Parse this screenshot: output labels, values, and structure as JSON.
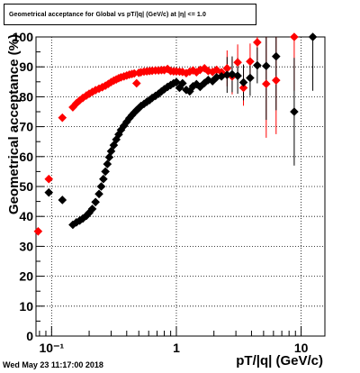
{
  "chart_data": {
    "type": "scatter",
    "title": "Geometrical acceptance for Global vs pT/|q| (GeV/c) at |η| <= 1.0",
    "xlabel": "pT/|q| (GeV/c)",
    "ylabel": "Geometrical acceptance (%)",
    "xscale": "log",
    "xlim": [
      0.075,
      15.5
    ],
    "ylim": [
      0,
      100
    ],
    "x_tick_labels": [
      "10⁻¹",
      "1",
      "10"
    ],
    "y_tick_labels": [
      "0",
      "10",
      "20",
      "30",
      "40",
      "50",
      "60",
      "70",
      "80",
      "90",
      "100"
    ],
    "grid": true,
    "series": [
      {
        "color": "#ff0000",
        "marker": "diamond",
        "points": [
          {
            "x": 0.078,
            "y": 35
          },
          {
            "x": 0.095,
            "y": 52.5
          },
          {
            "x": 0.122,
            "y": 73
          },
          {
            "x": 0.148,
            "y": 76.5
          },
          {
            "x": 0.158,
            "y": 77.8
          },
          {
            "x": 0.168,
            "y": 78.8
          },
          {
            "x": 0.178,
            "y": 79.6
          },
          {
            "x": 0.19,
            "y": 80.4
          },
          {
            "x": 0.2,
            "y": 81
          },
          {
            "x": 0.212,
            "y": 81.6
          },
          {
            "x": 0.225,
            "y": 82.2
          },
          {
            "x": 0.24,
            "y": 82.7
          },
          {
            "x": 0.255,
            "y": 83.2
          },
          {
            "x": 0.27,
            "y": 83.7
          },
          {
            "x": 0.285,
            "y": 84.3
          },
          {
            "x": 0.3,
            "y": 84.9
          },
          {
            "x": 0.315,
            "y": 85.4
          },
          {
            "x": 0.33,
            "y": 85.8
          },
          {
            "x": 0.345,
            "y": 86.2
          },
          {
            "x": 0.36,
            "y": 86.5
          },
          {
            "x": 0.38,
            "y": 86.8
          },
          {
            "x": 0.4,
            "y": 87.1
          },
          {
            "x": 0.42,
            "y": 87.4
          },
          {
            "x": 0.44,
            "y": 87.6
          },
          {
            "x": 0.46,
            "y": 87.8
          },
          {
            "x": 0.48,
            "y": 84.5
          },
          {
            "x": 0.5,
            "y": 88
          },
          {
            "x": 0.52,
            "y": 88.2
          },
          {
            "x": 0.55,
            "y": 88.4
          },
          {
            "x": 0.58,
            "y": 88.5
          },
          {
            "x": 0.61,
            "y": 88.6
          },
          {
            "x": 0.64,
            "y": 88.7
          },
          {
            "x": 0.68,
            "y": 88.8
          },
          {
            "x": 0.72,
            "y": 88.8
          },
          {
            "x": 0.76,
            "y": 88.9
          },
          {
            "x": 0.8,
            "y": 88.9
          },
          {
            "x": 0.85,
            "y": 89.3
          },
          {
            "x": 0.9,
            "y": 88.6
          },
          {
            "x": 0.95,
            "y": 88.5
          },
          {
            "x": 1.0,
            "y": 88.5
          },
          {
            "x": 1.06,
            "y": 88.4
          },
          {
            "x": 1.12,
            "y": 88.3
          },
          {
            "x": 1.2,
            "y": 87.9
          },
          {
            "x": 1.28,
            "y": 88.4
          },
          {
            "x": 1.36,
            "y": 88.8
          },
          {
            "x": 1.45,
            "y": 88.2
          },
          {
            "x": 1.55,
            "y": 89
          },
          {
            "x": 1.68,
            "y": 89.5
          },
          {
            "x": 1.8,
            "y": 88.6
          },
          {
            "x": 1.95,
            "y": 88.3
          },
          {
            "x": 2.1,
            "y": 89
          },
          {
            "x": 2.3,
            "y": 88.2
          },
          {
            "x": 2.55,
            "y": 89.5
          },
          {
            "x": 2.8,
            "y": 86.8
          },
          {
            "x": 3.1,
            "y": 91.5
          },
          {
            "x": 3.45,
            "y": 83
          },
          {
            "x": 3.9,
            "y": 91.8
          },
          {
            "x": 4.45,
            "y": 98.2
          },
          {
            "x": 5.25,
            "y": 84.3
          },
          {
            "x": 6.3,
            "y": 85.5
          },
          {
            "x": 8.8,
            "y": 100
          }
        ]
      },
      {
        "color": "#000000",
        "marker": "diamond",
        "points": [
          {
            "x": 0.095,
            "y": 48
          },
          {
            "x": 0.122,
            "y": 45.5
          },
          {
            "x": 0.148,
            "y": 37.2
          },
          {
            "x": 0.158,
            "y": 38
          },
          {
            "x": 0.168,
            "y": 38.6
          },
          {
            "x": 0.178,
            "y": 39.3
          },
          {
            "x": 0.19,
            "y": 40.2
          },
          {
            "x": 0.2,
            "y": 41.2
          },
          {
            "x": 0.212,
            "y": 42.5
          },
          {
            "x": 0.225,
            "y": 44.8
          },
          {
            "x": 0.24,
            "y": 47.5
          },
          {
            "x": 0.25,
            "y": 50
          },
          {
            "x": 0.26,
            "y": 52.5
          },
          {
            "x": 0.27,
            "y": 55
          },
          {
            "x": 0.28,
            "y": 57.5
          },
          {
            "x": 0.29,
            "y": 59.8
          },
          {
            "x": 0.3,
            "y": 61.8
          },
          {
            "x": 0.315,
            "y": 63.8
          },
          {
            "x": 0.33,
            "y": 65.7
          },
          {
            "x": 0.345,
            "y": 67.4
          },
          {
            "x": 0.36,
            "y": 68.9
          },
          {
            "x": 0.38,
            "y": 70.3
          },
          {
            "x": 0.4,
            "y": 71.6
          },
          {
            "x": 0.42,
            "y": 72.8
          },
          {
            "x": 0.44,
            "y": 73.8
          },
          {
            "x": 0.46,
            "y": 74.7
          },
          {
            "x": 0.48,
            "y": 75.5
          },
          {
            "x": 0.5,
            "y": 76.2
          },
          {
            "x": 0.52,
            "y": 76.9
          },
          {
            "x": 0.55,
            "y": 77.6
          },
          {
            "x": 0.58,
            "y": 78.3
          },
          {
            "x": 0.61,
            "y": 78.9
          },
          {
            "x": 0.64,
            "y": 79.6
          },
          {
            "x": 0.68,
            "y": 80.3
          },
          {
            "x": 0.72,
            "y": 81
          },
          {
            "x": 0.76,
            "y": 81.8
          },
          {
            "x": 0.8,
            "y": 82.5
          },
          {
            "x": 0.85,
            "y": 83.3
          },
          {
            "x": 0.9,
            "y": 83.9
          },
          {
            "x": 0.95,
            "y": 84.5
          },
          {
            "x": 1.0,
            "y": 84.9
          },
          {
            "x": 1.06,
            "y": 83
          },
          {
            "x": 1.12,
            "y": 84.5
          },
          {
            "x": 1.2,
            "y": 82.3
          },
          {
            "x": 1.28,
            "y": 81.8
          },
          {
            "x": 1.36,
            "y": 83.5
          },
          {
            "x": 1.45,
            "y": 84.2
          },
          {
            "x": 1.55,
            "y": 83.3
          },
          {
            "x": 1.68,
            "y": 84.6
          },
          {
            "x": 1.8,
            "y": 85.6
          },
          {
            "x": 1.95,
            "y": 85.2
          },
          {
            "x": 2.1,
            "y": 86.5
          },
          {
            "x": 2.3,
            "y": 86.8
          },
          {
            "x": 2.55,
            "y": 87.3
          },
          {
            "x": 2.8,
            "y": 87.5
          },
          {
            "x": 3.1,
            "y": 87
          },
          {
            "x": 3.45,
            "y": 84.8
          },
          {
            "x": 3.9,
            "y": 86.3
          },
          {
            "x": 4.45,
            "y": 90.5
          },
          {
            "x": 5.25,
            "y": 90.3
          },
          {
            "x": 6.3,
            "y": 93.5
          },
          {
            "x": 8.8,
            "y": 75
          },
          {
            "x": 12.4,
            "y": 100
          }
        ]
      }
    ]
  },
  "footer": {
    "datestamp": "Wed May 23 11:17:00 2018"
  }
}
